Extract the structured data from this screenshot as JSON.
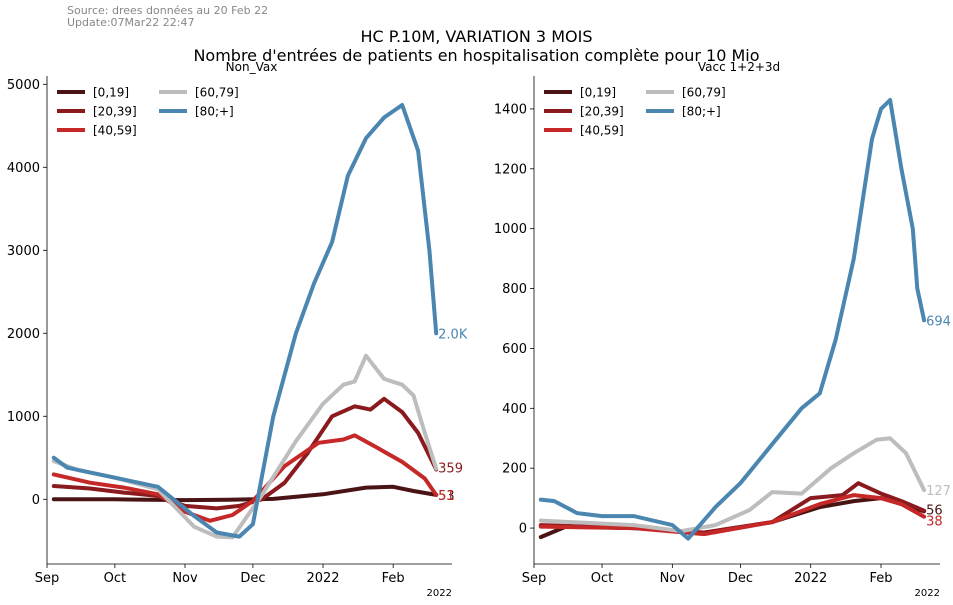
{
  "header": {
    "source": "Source: drees données au 20 Feb 22",
    "update": "Update:07Mar22 22:47",
    "title": "HC P.10M, VARIATION 3 MOIS",
    "subtitle": "Nombre d'entrées de patients en hospitalisation complète pour 10 Mio"
  },
  "chart_data": [
    {
      "type": "line",
      "title": "Non_Vax",
      "x_tick_labels": [
        "Sep",
        "Oct",
        "Nov",
        "Dec",
        "2022",
        "Feb"
      ],
      "x_offset_label": "2022",
      "x_range": [
        "2021-09-01",
        "2022-02-27"
      ],
      "ylim": [
        -780,
        5100
      ],
      "y_ticks": [
        0,
        1000,
        2000,
        3000,
        4000,
        5000
      ],
      "legend": {
        "position": "top-left",
        "ncol": 2
      },
      "series": [
        {
          "name": "[0,19]",
          "color": "#4a1414",
          "end_label": "53",
          "end_label_color": "#4a1414",
          "points": [
            [
              "2021-09-04",
              0
            ],
            [
              "2021-10-01",
              0
            ],
            [
              "2021-11-01",
              -10
            ],
            [
              "2021-11-20",
              -5
            ],
            [
              "2021-12-10",
              5
            ],
            [
              "2022-01-01",
              60
            ],
            [
              "2022-01-20",
              140
            ],
            [
              "2022-02-01",
              150
            ],
            [
              "2022-02-10",
              100
            ],
            [
              "2022-02-20",
              53
            ]
          ]
        },
        {
          "name": "[20,39]",
          "color": "#8b1a1e",
          "end_label": "359",
          "end_label_color": "#8b1a1e",
          "points": [
            [
              "2021-09-04",
              160
            ],
            [
              "2021-09-20",
              130
            ],
            [
              "2021-10-05",
              80
            ],
            [
              "2021-10-20",
              40
            ],
            [
              "2021-11-01",
              -80
            ],
            [
              "2021-11-15",
              -110
            ],
            [
              "2021-11-25",
              -80
            ],
            [
              "2021-12-05",
              0
            ],
            [
              "2021-12-15",
              200
            ],
            [
              "2021-12-25",
              550
            ],
            [
              "2022-01-05",
              1000
            ],
            [
              "2022-01-15",
              1120
            ],
            [
              "2022-01-22",
              1080
            ],
            [
              "2022-01-28",
              1210
            ],
            [
              "2022-02-05",
              1050
            ],
            [
              "2022-02-12",
              800
            ],
            [
              "2022-02-20",
              359
            ]
          ]
        },
        {
          "name": "[40,59]",
          "color": "#c62828",
          "end_label": "51",
          "end_label_color": "#c62828",
          "points": [
            [
              "2021-09-04",
              300
            ],
            [
              "2021-09-20",
              200
            ],
            [
              "2021-10-05",
              140
            ],
            [
              "2021-10-20",
              60
            ],
            [
              "2021-11-01",
              -150
            ],
            [
              "2021-11-12",
              -260
            ],
            [
              "2021-11-22",
              -190
            ],
            [
              "2021-12-01",
              -20
            ],
            [
              "2021-12-15",
              400
            ],
            [
              "2021-12-30",
              680
            ],
            [
              "2022-01-10",
              720
            ],
            [
              "2022-01-15",
              770
            ],
            [
              "2022-01-25",
              620
            ],
            [
              "2022-02-05",
              450
            ],
            [
              "2022-02-15",
              250
            ],
            [
              "2022-02-20",
              51
            ]
          ]
        },
        {
          "name": "[60,79]",
          "color": "#bdbdbd",
          "end_label": "",
          "end_label_color": "#bdbdbd",
          "points": [
            [
              "2021-09-04",
              460
            ],
            [
              "2021-09-15",
              350
            ],
            [
              "2021-10-01",
              260
            ],
            [
              "2021-10-20",
              120
            ],
            [
              "2021-11-05",
              -330
            ],
            [
              "2021-11-15",
              -450
            ],
            [
              "2021-11-22",
              -460
            ],
            [
              "2021-12-05",
              50
            ],
            [
              "2021-12-20",
              700
            ],
            [
              "2022-01-01",
              1150
            ],
            [
              "2022-01-10",
              1380
            ],
            [
              "2022-01-15",
              1420
            ],
            [
              "2022-01-20",
              1730
            ],
            [
              "2022-01-28",
              1450
            ],
            [
              "2022-02-05",
              1380
            ],
            [
              "2022-02-10",
              1250
            ],
            [
              "2022-02-15",
              800
            ],
            [
              "2022-02-20",
              370
            ]
          ]
        },
        {
          "name": "[80;+]",
          "color": "#4a86b0",
          "end_label": "2.0K",
          "end_label_color": "#4a86b0",
          "points": [
            [
              "2021-09-04",
              500
            ],
            [
              "2021-09-10",
              380
            ],
            [
              "2021-10-01",
              260
            ],
            [
              "2021-10-20",
              150
            ],
            [
              "2021-11-05",
              -200
            ],
            [
              "2021-11-15",
              -400
            ],
            [
              "2021-11-25",
              -450
            ],
            [
              "2021-12-01",
              -300
            ],
            [
              "2021-12-10",
              1000
            ],
            [
              "2021-12-20",
              2000
            ],
            [
              "2021-12-28",
              2600
            ],
            [
              "2022-01-05",
              3100
            ],
            [
              "2022-01-12",
              3900
            ],
            [
              "2022-01-20",
              4350
            ],
            [
              "2022-01-28",
              4600
            ],
            [
              "2022-02-05",
              4750
            ],
            [
              "2022-02-12",
              4200
            ],
            [
              "2022-02-17",
              3000
            ],
            [
              "2022-02-20",
              2000
            ]
          ]
        }
      ]
    },
    {
      "type": "line",
      "title": "Vacc 1+2+3d",
      "x_tick_labels": [
        "Sep",
        "Oct",
        "Nov",
        "Dec",
        "2022",
        "Feb"
      ],
      "x_offset_label": "2022",
      "x_range": [
        "2021-09-01",
        "2022-02-27"
      ],
      "ylim": [
        -120,
        1510
      ],
      "y_ticks": [
        0,
        200,
        400,
        600,
        800,
        1000,
        1200,
        1400
      ],
      "legend": {
        "position": "top-left",
        "ncol": 2
      },
      "series": [
        {
          "name": "[0,19]",
          "color": "#4a1414",
          "end_label": "56",
          "end_label_color": "#4a1414",
          "points": [
            [
              "2021-09-04",
              -30
            ],
            [
              "2021-09-15",
              5
            ],
            [
              "2021-10-15",
              0
            ],
            [
              "2021-11-15",
              -15
            ],
            [
              "2021-12-15",
              20
            ],
            [
              "2022-01-05",
              70
            ],
            [
              "2022-01-20",
              90
            ],
            [
              "2022-02-01",
              100
            ],
            [
              "2022-02-10",
              80
            ],
            [
              "2022-02-20",
              56
            ]
          ]
        },
        {
          "name": "[20,39]",
          "color": "#8b1a1e",
          "end_label": "",
          "end_label_color": "#8b1a1e",
          "points": [
            [
              "2021-09-04",
              10
            ],
            [
              "2021-10-15",
              0
            ],
            [
              "2021-11-15",
              -15
            ],
            [
              "2021-12-15",
              20
            ],
            [
              "2022-01-01",
              100
            ],
            [
              "2022-01-15",
              110
            ],
            [
              "2022-01-22",
              150
            ],
            [
              "2022-02-01",
              115
            ],
            [
              "2022-02-10",
              90
            ],
            [
              "2022-02-20",
              58
            ]
          ]
        },
        {
          "name": "[40,59]",
          "color": "#c62828",
          "end_label": "38",
          "end_label_color": "#c62828",
          "points": [
            [
              "2021-09-04",
              5
            ],
            [
              "2021-10-15",
              0
            ],
            [
              "2021-11-15",
              -20
            ],
            [
              "2021-12-15",
              20
            ],
            [
              "2022-01-05",
              80
            ],
            [
              "2022-01-20",
              110
            ],
            [
              "2022-02-01",
              100
            ],
            [
              "2022-02-10",
              80
            ],
            [
              "2022-02-20",
              38
            ]
          ]
        },
        {
          "name": "[60,79]",
          "color": "#bdbdbd",
          "end_label": "127",
          "end_label_color": "#bdbdbd",
          "points": [
            [
              "2021-09-04",
              25
            ],
            [
              "2021-10-15",
              10
            ],
            [
              "2021-11-05",
              -10
            ],
            [
              "2021-11-20",
              10
            ],
            [
              "2021-12-05",
              60
            ],
            [
              "2021-12-15",
              120
            ],
            [
              "2021-12-28",
              115
            ],
            [
              "2022-01-10",
              200
            ],
            [
              "2022-01-20",
              250
            ],
            [
              "2022-01-30",
              295
            ],
            [
              "2022-02-05",
              300
            ],
            [
              "2022-02-12",
              250
            ],
            [
              "2022-02-20",
              127
            ]
          ]
        },
        {
          "name": "[80;+]",
          "color": "#4a86b0",
          "end_label": "694",
          "end_label_color": "#4a86b0",
          "points": [
            [
              "2021-09-04",
              95
            ],
            [
              "2021-09-10",
              90
            ],
            [
              "2021-09-20",
              50
            ],
            [
              "2021-10-01",
              40
            ],
            [
              "2021-10-15",
              40
            ],
            [
              "2021-11-01",
              10
            ],
            [
              "2021-11-08",
              -35
            ],
            [
              "2021-11-20",
              70
            ],
            [
              "2021-12-01",
              150
            ],
            [
              "2021-12-15",
              280
            ],
            [
              "2021-12-28",
              400
            ],
            [
              "2022-01-05",
              450
            ],
            [
              "2022-01-12",
              630
            ],
            [
              "2022-01-20",
              900
            ],
            [
              "2022-01-28",
              1300
            ],
            [
              "2022-02-01",
              1400
            ],
            [
              "2022-02-05",
              1430
            ],
            [
              "2022-02-10",
              1200
            ],
            [
              "2022-02-15",
              1000
            ],
            [
              "2022-02-17",
              800
            ],
            [
              "2022-02-20",
              694
            ]
          ]
        }
      ]
    }
  ]
}
